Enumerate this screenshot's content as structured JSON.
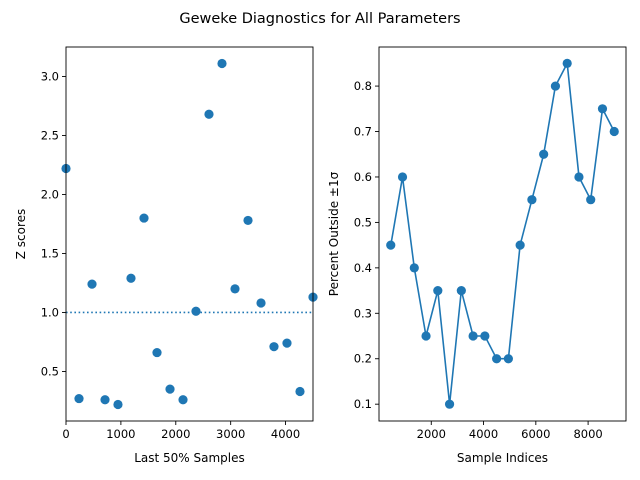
{
  "figure": {
    "suptitle": "Geweke Diagnostics for All Parameters"
  },
  "colors": {
    "marker": "#1f77b4",
    "line": "#1f77b4",
    "axis": "#000000"
  },
  "chart_data": [
    {
      "type": "scatter",
      "xlabel": "Last 50% Samples",
      "ylabel": "Z scores",
      "xlim": [
        0,
        4500
      ],
      "ylim": [
        0.08,
        3.25
      ],
      "xticks": [
        0,
        1000,
        2000,
        3000,
        4000
      ],
      "yticks": [
        0.5,
        1.0,
        1.5,
        2.0,
        2.5,
        3.0
      ],
      "ytick_labels": [
        "0.5",
        "1.0",
        "1.5",
        "2.0",
        "2.5",
        "3.0"
      ],
      "reference_line": {
        "y": 1.0,
        "style": "dotted"
      },
      "points": [
        {
          "x": 0,
          "y": 2.22
        },
        {
          "x": 237,
          "y": 0.27
        },
        {
          "x": 474,
          "y": 1.24
        },
        {
          "x": 711,
          "y": 0.26
        },
        {
          "x": 947,
          "y": 0.22
        },
        {
          "x": 1184,
          "y": 1.29
        },
        {
          "x": 1421,
          "y": 1.8
        },
        {
          "x": 1658,
          "y": 0.66
        },
        {
          "x": 1895,
          "y": 0.35
        },
        {
          "x": 2132,
          "y": 0.26
        },
        {
          "x": 2368,
          "y": 1.01
        },
        {
          "x": 2605,
          "y": 2.68
        },
        {
          "x": 2842,
          "y": 3.11
        },
        {
          "x": 3079,
          "y": 1.2
        },
        {
          "x": 3316,
          "y": 1.78
        },
        {
          "x": 3553,
          "y": 1.08
        },
        {
          "x": 3789,
          "y": 0.71
        },
        {
          "x": 4026,
          "y": 0.74
        },
        {
          "x": 4263,
          "y": 0.33
        },
        {
          "x": 4500,
          "y": 1.13
        }
      ]
    },
    {
      "type": "line",
      "markers": true,
      "xlabel": "Sample Indices",
      "ylabel": "Percent Outside ±1σ",
      "xlim": [
        0,
        9450
      ],
      "ylim": [
        0.063,
        0.886
      ],
      "xticks": [
        2000,
        4000,
        6000,
        8000
      ],
      "yticks": [
        0.1,
        0.2,
        0.3,
        0.4,
        0.5,
        0.6,
        0.7,
        0.8
      ],
      "points": [
        {
          "x": 450,
          "y": 0.45
        },
        {
          "x": 900,
          "y": 0.6
        },
        {
          "x": 1350,
          "y": 0.4
        },
        {
          "x": 1800,
          "y": 0.25
        },
        {
          "x": 2250,
          "y": 0.35
        },
        {
          "x": 2700,
          "y": 0.1
        },
        {
          "x": 3150,
          "y": 0.35
        },
        {
          "x": 3600,
          "y": 0.25
        },
        {
          "x": 4050,
          "y": 0.25
        },
        {
          "x": 4500,
          "y": 0.2
        },
        {
          "x": 4950,
          "y": 0.2
        },
        {
          "x": 5400,
          "y": 0.45
        },
        {
          "x": 5850,
          "y": 0.55
        },
        {
          "x": 6300,
          "y": 0.65
        },
        {
          "x": 6750,
          "y": 0.8
        },
        {
          "x": 7200,
          "y": 0.85
        },
        {
          "x": 7650,
          "y": 0.6
        },
        {
          "x": 8100,
          "y": 0.55
        },
        {
          "x": 8550,
          "y": 0.75
        },
        {
          "x": 9000,
          "y": 0.7
        }
      ]
    }
  ]
}
